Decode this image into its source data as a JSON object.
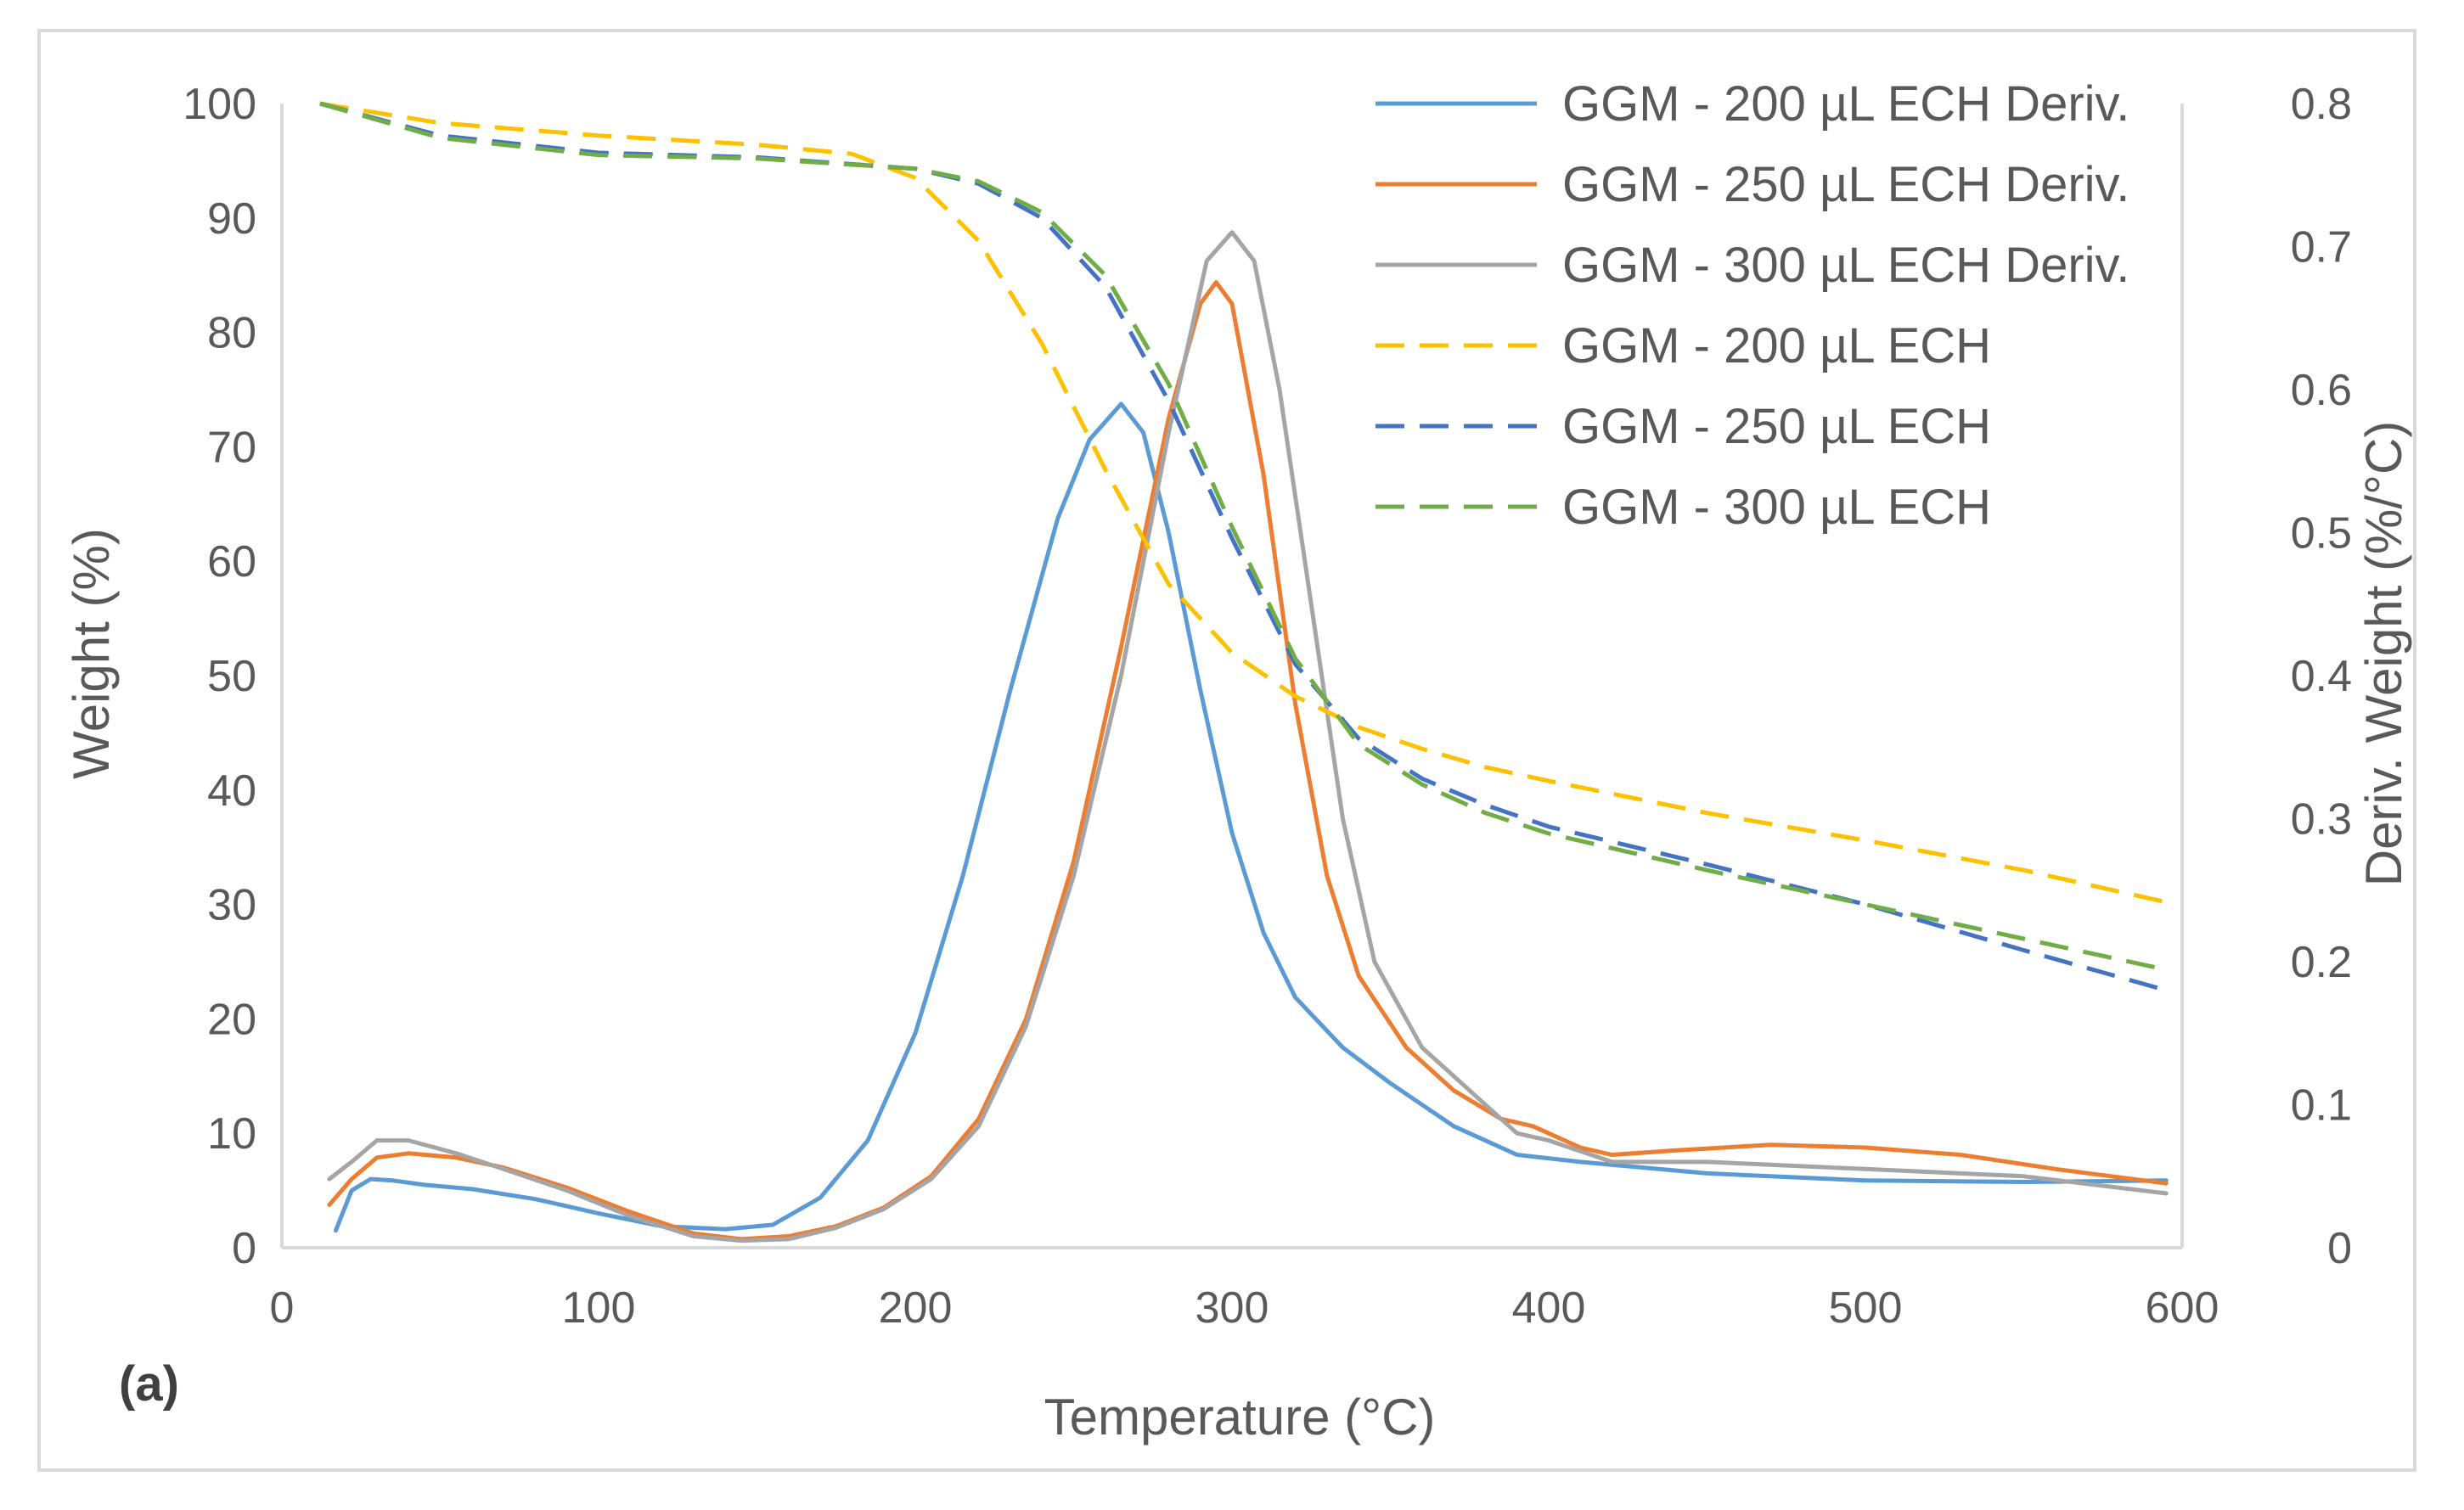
{
  "chart_data": {
    "type": "line",
    "panel_label": "(a)",
    "xlabel": "Temperature (°C)",
    "ylabel": "Weight (%)",
    "y2label": "Deriv. Weight (%/°C)",
    "xlim": [
      0,
      600
    ],
    "ylim": [
      0,
      100
    ],
    "y2lim": [
      0,
      0.8
    ],
    "x_ticks": [
      0,
      100,
      200,
      300,
      400,
      500,
      600
    ],
    "y_ticks": [
      0,
      10,
      20,
      30,
      40,
      50,
      60,
      70,
      80,
      90,
      100
    ],
    "y2_ticks": [
      "0",
      "0.1",
      "0.2",
      "0.3",
      "0.4",
      "0.5",
      "0.6",
      "0.7",
      "0.8"
    ],
    "legend_position": "top-right",
    "series": [
      {
        "name": "GGM - 200 µL ECH Deriv.",
        "axis": "right",
        "style": "solid",
        "color": "#5b9bd5",
        "points": [
          [
            17,
            0.012
          ],
          [
            22,
            0.04
          ],
          [
            28,
            0.048
          ],
          [
            35,
            0.047
          ],
          [
            45,
            0.044
          ],
          [
            60,
            0.041
          ],
          [
            80,
            0.034
          ],
          [
            100,
            0.024
          ],
          [
            120,
            0.015
          ],
          [
            140,
            0.013
          ],
          [
            155,
            0.016
          ],
          [
            170,
            0.035
          ],
          [
            185,
            0.075
          ],
          [
            200,
            0.15
          ],
          [
            215,
            0.26
          ],
          [
            230,
            0.39
          ],
          [
            245,
            0.51
          ],
          [
            255,
            0.565
          ],
          [
            265,
            0.59
          ],
          [
            272,
            0.57
          ],
          [
            280,
            0.5
          ],
          [
            290,
            0.39
          ],
          [
            300,
            0.29
          ],
          [
            310,
            0.22
          ],
          [
            320,
            0.175
          ],
          [
            335,
            0.14
          ],
          [
            350,
            0.115
          ],
          [
            370,
            0.085
          ],
          [
            390,
            0.065
          ],
          [
            410,
            0.06
          ],
          [
            450,
            0.052
          ],
          [
            500,
            0.047
          ],
          [
            550,
            0.046
          ],
          [
            595,
            0.047
          ]
        ]
      },
      {
        "name": "GGM - 250 µL ECH Deriv.",
        "axis": "right",
        "style": "solid",
        "color": "#ed7d31",
        "points": [
          [
            15,
            0.03
          ],
          [
            22,
            0.048
          ],
          [
            30,
            0.063
          ],
          [
            40,
            0.066
          ],
          [
            55,
            0.063
          ],
          [
            70,
            0.056
          ],
          [
            90,
            0.042
          ],
          [
            110,
            0.025
          ],
          [
            130,
            0.01
          ],
          [
            145,
            0.006
          ],
          [
            160,
            0.008
          ],
          [
            175,
            0.015
          ],
          [
            190,
            0.028
          ],
          [
            205,
            0.05
          ],
          [
            220,
            0.09
          ],
          [
            235,
            0.16
          ],
          [
            250,
            0.27
          ],
          [
            265,
            0.42
          ],
          [
            280,
            0.58
          ],
          [
            290,
            0.66
          ],
          [
            295,
            0.675
          ],
          [
            300,
            0.66
          ],
          [
            310,
            0.54
          ],
          [
            320,
            0.38
          ],
          [
            330,
            0.26
          ],
          [
            340,
            0.19
          ],
          [
            355,
            0.14
          ],
          [
            370,
            0.11
          ],
          [
            385,
            0.09
          ],
          [
            395,
            0.085
          ],
          [
            400,
            0.08
          ],
          [
            410,
            0.07
          ],
          [
            420,
            0.065
          ],
          [
            440,
            0.068
          ],
          [
            470,
            0.072
          ],
          [
            500,
            0.07
          ],
          [
            530,
            0.065
          ],
          [
            560,
            0.055
          ],
          [
            595,
            0.045
          ]
        ]
      },
      {
        "name": "GGM - 300 µL ECH Deriv.",
        "axis": "right",
        "style": "solid",
        "color": "#a5a5a5",
        "points": [
          [
            15,
            0.048
          ],
          [
            22,
            0.06
          ],
          [
            30,
            0.075
          ],
          [
            40,
            0.075
          ],
          [
            55,
            0.066
          ],
          [
            70,
            0.055
          ],
          [
            90,
            0.04
          ],
          [
            110,
            0.022
          ],
          [
            130,
            0.008
          ],
          [
            145,
            0.005
          ],
          [
            160,
            0.006
          ],
          [
            175,
            0.014
          ],
          [
            190,
            0.027
          ],
          [
            205,
            0.048
          ],
          [
            220,
            0.085
          ],
          [
            235,
            0.155
          ],
          [
            250,
            0.26
          ],
          [
            265,
            0.4
          ],
          [
            280,
            0.57
          ],
          [
            292,
            0.69
          ],
          [
            300,
            0.71
          ],
          [
            307,
            0.69
          ],
          [
            315,
            0.6
          ],
          [
            325,
            0.45
          ],
          [
            335,
            0.3
          ],
          [
            345,
            0.2
          ],
          [
            360,
            0.14
          ],
          [
            375,
            0.11
          ],
          [
            390,
            0.08
          ],
          [
            400,
            0.075
          ],
          [
            420,
            0.06
          ],
          [
            450,
            0.06
          ],
          [
            500,
            0.055
          ],
          [
            550,
            0.05
          ],
          [
            595,
            0.038
          ]
        ]
      },
      {
        "name": "GGM - 200 µL ECH",
        "axis": "left",
        "style": "dashed",
        "color": "#ffc000",
        "points": [
          [
            12,
            100
          ],
          [
            50,
            98.3
          ],
          [
            100,
            97.2
          ],
          [
            150,
            96.4
          ],
          [
            180,
            95.6
          ],
          [
            200,
            93.5
          ],
          [
            220,
            88
          ],
          [
            240,
            79
          ],
          [
            260,
            68
          ],
          [
            280,
            58
          ],
          [
            300,
            52
          ],
          [
            320,
            48.2
          ],
          [
            340,
            45.5
          ],
          [
            360,
            43.6
          ],
          [
            380,
            42
          ],
          [
            400,
            40.8
          ],
          [
            450,
            38
          ],
          [
            500,
            35.6
          ],
          [
            550,
            33
          ],
          [
            595,
            30.2
          ]
        ]
      },
      {
        "name": "GGM - 250 µL ECH",
        "axis": "left",
        "style": "dashed",
        "color": "#4472c4",
        "points": [
          [
            12,
            100
          ],
          [
            50,
            97.2
          ],
          [
            100,
            95.7
          ],
          [
            150,
            95.3
          ],
          [
            200,
            94.3
          ],
          [
            220,
            93
          ],
          [
            240,
            90
          ],
          [
            260,
            84
          ],
          [
            280,
            74
          ],
          [
            300,
            62
          ],
          [
            320,
            51
          ],
          [
            340,
            44.5
          ],
          [
            360,
            41
          ],
          [
            380,
            38.7
          ],
          [
            400,
            36.8
          ],
          [
            450,
            33.5
          ],
          [
            500,
            30
          ],
          [
            550,
            26
          ],
          [
            595,
            22.5
          ]
        ]
      },
      {
        "name": "GGM - 300 µL ECH",
        "axis": "left",
        "style": "dashed",
        "color": "#70ad47",
        "points": [
          [
            12,
            100
          ],
          [
            50,
            97
          ],
          [
            100,
            95.5
          ],
          [
            150,
            95.2
          ],
          [
            200,
            94.3
          ],
          [
            220,
            93.2
          ],
          [
            240,
            90.5
          ],
          [
            260,
            85
          ],
          [
            280,
            75.5
          ],
          [
            300,
            63
          ],
          [
            320,
            51.5
          ],
          [
            340,
            44
          ],
          [
            360,
            40.5
          ],
          [
            380,
            38
          ],
          [
            400,
            36.2
          ],
          [
            450,
            33
          ],
          [
            500,
            30
          ],
          [
            550,
            27
          ],
          [
            595,
            24.3
          ]
        ]
      }
    ]
  }
}
